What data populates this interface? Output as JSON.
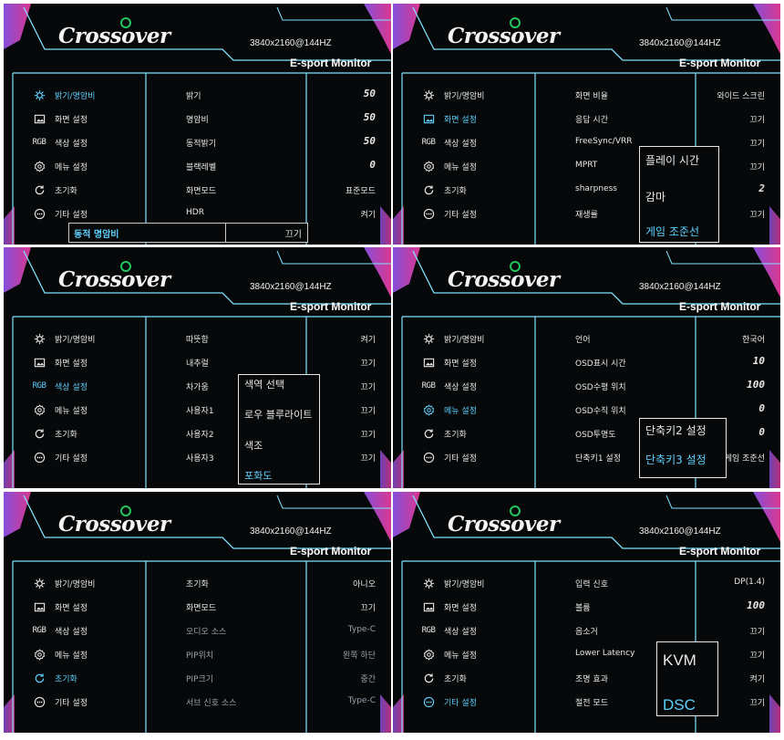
{
  "brand": "Crossover",
  "resolution": "3840x2160@144HZ",
  "monitor_title": "E-sport Monitor",
  "colors": {
    "accent": "#5fd1ff",
    "frame_line": "#7fe3ff",
    "glow_pink": "#ff3fa8",
    "glow_purple": "#9b5cff"
  },
  "menu": [
    {
      "icon": "brightness-icon",
      "label": "밝기/명암비"
    },
    {
      "icon": "image-icon",
      "label": "화면 설정"
    },
    {
      "icon": "rgb-icon",
      "label": "색상 설정",
      "text_icon": "RGB"
    },
    {
      "icon": "gear-icon",
      "label": "메뉴 설정"
    },
    {
      "icon": "reset-icon",
      "label": "초기화"
    },
    {
      "icon": "more-icon",
      "label": "기타 설정"
    }
  ],
  "panels": [
    {
      "active": 0,
      "rows": [
        {
          "label": "밝기",
          "value": "50",
          "big": true
        },
        {
          "label": "명암비",
          "value": "50",
          "big": true
        },
        {
          "label": "동적밝기",
          "value": "50",
          "big": true
        },
        {
          "label": "블랙레벨",
          "value": "0",
          "big": true
        },
        {
          "label": "화면모드",
          "value": "표준모드"
        },
        {
          "label": "HDR",
          "value": "켜기"
        }
      ],
      "subbar": {
        "label": "동적 명암비",
        "value": "끄기"
      }
    },
    {
      "active": 1,
      "rows": [
        {
          "label": "화면 비율",
          "value": "와이드 스크린"
        },
        {
          "label": "응답 시간",
          "value": "끄기"
        },
        {
          "label": "FreeSync/VRR",
          "value": "끄기"
        },
        {
          "label": "MPRT",
          "value": "끄기"
        },
        {
          "label": "sharpness",
          "value": "2",
          "big": true
        },
        {
          "label": "재생률",
          "value": "끄기"
        }
      ],
      "popup": {
        "items": [
          {
            "label": "플레이 시간"
          },
          {
            "label": "감마"
          },
          {
            "label": "게임 조준선",
            "selected": true
          }
        ]
      }
    },
    {
      "active": 2,
      "rows": [
        {
          "label": "따뜻함",
          "value": "켜기"
        },
        {
          "label": "내추럴",
          "value": "끄기"
        },
        {
          "label": "차가움",
          "value": "끄기"
        },
        {
          "label": "사용자1",
          "value": "끄기"
        },
        {
          "label": "사용자2",
          "value": "끄기"
        },
        {
          "label": "사용자3",
          "value": "끄기"
        }
      ],
      "popup": {
        "items": [
          {
            "label": "색역 선택"
          },
          {
            "label": "로우 블루라이트"
          },
          {
            "label": "색조"
          },
          {
            "label": "포화도",
            "selected": true
          }
        ]
      }
    },
    {
      "active": 3,
      "rows": [
        {
          "label": "언어",
          "value": "한국어"
        },
        {
          "label": "OSD표시 시간",
          "value": "10",
          "big": true
        },
        {
          "label": "OSD수평 위치",
          "value": "100",
          "big": true
        },
        {
          "label": "OSD수직 위치",
          "value": "0",
          "big": true
        },
        {
          "label": "OSD투명도",
          "value": "0",
          "big": true
        },
        {
          "label": "단축키1 설정",
          "value": "게임 조준선"
        }
      ],
      "popup": {
        "items": [
          {
            "label": "단축키2 설정"
          },
          {
            "label": "단축키3 설정",
            "selected": true
          }
        ]
      }
    },
    {
      "active": 4,
      "rows": [
        {
          "label": "초기화",
          "value": "아니오"
        },
        {
          "label": "화면모드",
          "value": "끄기"
        },
        {
          "label": "오디오 소스",
          "value": "Type-C",
          "dim": true
        },
        {
          "label": "PIP위치",
          "value": "왼쪽 하단",
          "dim": true
        },
        {
          "label": "PIP크기",
          "value": "중간",
          "dim": true
        },
        {
          "label": "서브 신호 소스",
          "value": "Type-C",
          "dim": true
        }
      ]
    },
    {
      "active": 5,
      "rows": [
        {
          "label": "입력 신호",
          "value": "DP(1.4)"
        },
        {
          "label": "볼륨",
          "value": "100",
          "big": true
        },
        {
          "label": "음소거",
          "value": "끄기"
        },
        {
          "label": "Lower Latency",
          "value": "끄기"
        },
        {
          "label": "조명 효과",
          "value": "켜기"
        },
        {
          "label": "절전 모드",
          "value": "끄기"
        }
      ],
      "popup": {
        "items": [
          {
            "label": "KVM"
          },
          {
            "label": "DSC",
            "selected": true
          }
        ]
      }
    }
  ]
}
